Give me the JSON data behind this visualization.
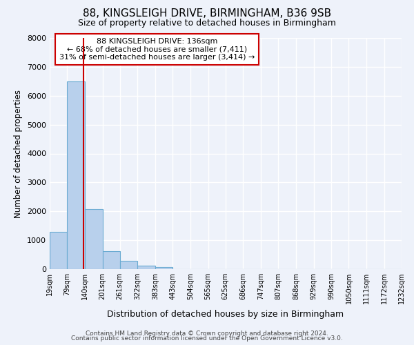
{
  "title_line1": "88, KINGSLEIGH DRIVE, BIRMINGHAM, B36 9SB",
  "title_line2": "Size of property relative to detached houses in Birmingham",
  "xlabel": "Distribution of detached houses by size in Birmingham",
  "ylabel": "Number of detached properties",
  "bin_edges": [
    19,
    79,
    140,
    201,
    261,
    322,
    383,
    443,
    504,
    565,
    625,
    686,
    747,
    807,
    868,
    929,
    990,
    1050,
    1111,
    1172,
    1232
  ],
  "bin_labels": [
    "19sqm",
    "79sqm",
    "140sqm",
    "201sqm",
    "261sqm",
    "322sqm",
    "383sqm",
    "443sqm",
    "504sqm",
    "565sqm",
    "625sqm",
    "686sqm",
    "747sqm",
    "807sqm",
    "868sqm",
    "929sqm",
    "990sqm",
    "1050sqm",
    "1111sqm",
    "1172sqm",
    "1232sqm"
  ],
  "counts": [
    1300,
    6500,
    2080,
    620,
    290,
    130,
    80,
    0,
    0,
    0,
    0,
    0,
    0,
    0,
    0,
    0,
    0,
    0,
    0,
    0
  ],
  "bar_color": "#b8d0ec",
  "bar_edgecolor": "#6aabd2",
  "property_value": 136,
  "vline_color": "#cc0000",
  "annotation_text_line1": "88 KINGSLEIGH DRIVE: 136sqm",
  "annotation_text_line2": "← 68% of detached houses are smaller (7,411)",
  "annotation_text_line3": "31% of semi-detached houses are larger (3,414) →",
  "annotation_box_edgecolor": "#cc0000",
  "annotation_box_facecolor": "#ffffff",
  "ylim": [
    0,
    8000
  ],
  "yticks": [
    0,
    1000,
    2000,
    3000,
    4000,
    5000,
    6000,
    7000,
    8000
  ],
  "footer_line1": "Contains HM Land Registry data © Crown copyright and database right 2024.",
  "footer_line2": "Contains public sector information licensed under the Open Government Licence v3.0.",
  "bg_color": "#eef2fa",
  "plot_bg_color": "#eef2fa",
  "grid_color": "#ffffff",
  "title_fontsize": 11,
  "subtitle_fontsize": 9
}
